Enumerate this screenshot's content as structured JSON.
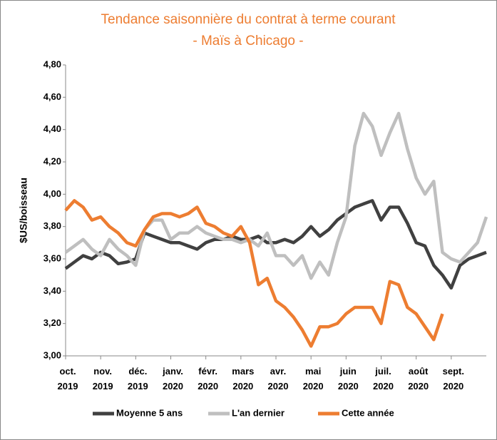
{
  "chart_data": {
    "type": "line",
    "title": "Tendance saisonnière du contrat à terme courant",
    "subtitle": "- Maïs à Chicago -",
    "y_label": "$US/boisseau",
    "categories": [
      "oct. 2019",
      null,
      null,
      null,
      "nov. 2019",
      null,
      null,
      null,
      "déc. 2019",
      null,
      null,
      null,
      "janv. 2020",
      null,
      null,
      null,
      "févr. 2020",
      null,
      null,
      null,
      "mars 2020",
      null,
      null,
      null,
      "avr. 2020",
      null,
      null,
      null,
      "mai 2020",
      null,
      null,
      null,
      "juin 2020",
      null,
      null,
      null,
      "juil. 2020",
      null,
      null,
      null,
      "août 2020",
      null,
      null,
      null,
      "sept. 2020",
      null,
      null,
      null,
      null
    ],
    "series": [
      {
        "name": "Moyenne 5 ans",
        "color": "#404040",
        "values": [
          3.54,
          3.58,
          3.62,
          3.6,
          3.64,
          3.62,
          3.57,
          3.58,
          3.6,
          3.76,
          3.74,
          3.72,
          3.7,
          3.7,
          3.68,
          3.66,
          3.7,
          3.72,
          3.72,
          3.74,
          3.72,
          3.72,
          3.74,
          3.7,
          3.7,
          3.72,
          3.7,
          3.74,
          3.8,
          3.74,
          3.78,
          3.84,
          3.88,
          3.92,
          3.94,
          3.96,
          3.84,
          3.92,
          3.92,
          3.82,
          3.7,
          3.68,
          3.56,
          3.5,
          3.42,
          3.56,
          3.6,
          3.62,
          3.64
        ]
      },
      {
        "name": "L'an dernier",
        "color": "#bfbfbf",
        "values": [
          3.64,
          3.68,
          3.72,
          3.66,
          3.62,
          3.72,
          3.66,
          3.62,
          3.56,
          3.78,
          3.84,
          3.84,
          3.72,
          3.76,
          3.76,
          3.8,
          3.76,
          3.74,
          3.72,
          3.72,
          3.7,
          3.72,
          3.68,
          3.76,
          3.62,
          3.62,
          3.56,
          3.62,
          3.48,
          3.58,
          3.5,
          3.7,
          3.86,
          4.3,
          4.5,
          4.42,
          4.24,
          4.38,
          4.5,
          4.28,
          4.1,
          4.0,
          4.08,
          3.64,
          3.6,
          3.58,
          3.64,
          3.7,
          3.86
        ]
      },
      {
        "name": "Cette année",
        "color": "#ed7d31",
        "values": [
          3.9,
          3.96,
          3.92,
          3.84,
          3.86,
          3.8,
          3.76,
          3.7,
          3.68,
          3.78,
          3.86,
          3.88,
          3.88,
          3.86,
          3.88,
          3.92,
          3.82,
          3.8,
          3.76,
          3.74,
          3.8,
          3.7,
          3.44,
          3.48,
          3.34,
          3.3,
          3.24,
          3.16,
          3.06,
          3.18,
          3.18,
          3.2,
          3.26,
          3.3,
          3.3,
          3.3,
          3.2,
          3.46,
          3.44,
          3.3,
          3.26,
          3.18,
          3.1,
          3.26,
          null,
          null,
          null,
          null,
          null
        ]
      }
    ],
    "ylim": [
      3.0,
      4.8
    ],
    "yticks": [
      {
        "value": 3.0,
        "label": "3,00"
      },
      {
        "value": 3.2,
        "label": "3,20"
      },
      {
        "value": 3.4,
        "label": "3,40"
      },
      {
        "value": 3.6,
        "label": "3,60"
      },
      {
        "value": 3.8,
        "label": "3,80"
      },
      {
        "value": 4.0,
        "label": "4,00"
      },
      {
        "value": 4.2,
        "label": "4,20"
      },
      {
        "value": 4.4,
        "label": "4,40"
      },
      {
        "value": 4.6,
        "label": "4,60"
      },
      {
        "value": 4.8,
        "label": "4,80"
      }
    ],
    "grid": false,
    "legend": "bottom"
  }
}
